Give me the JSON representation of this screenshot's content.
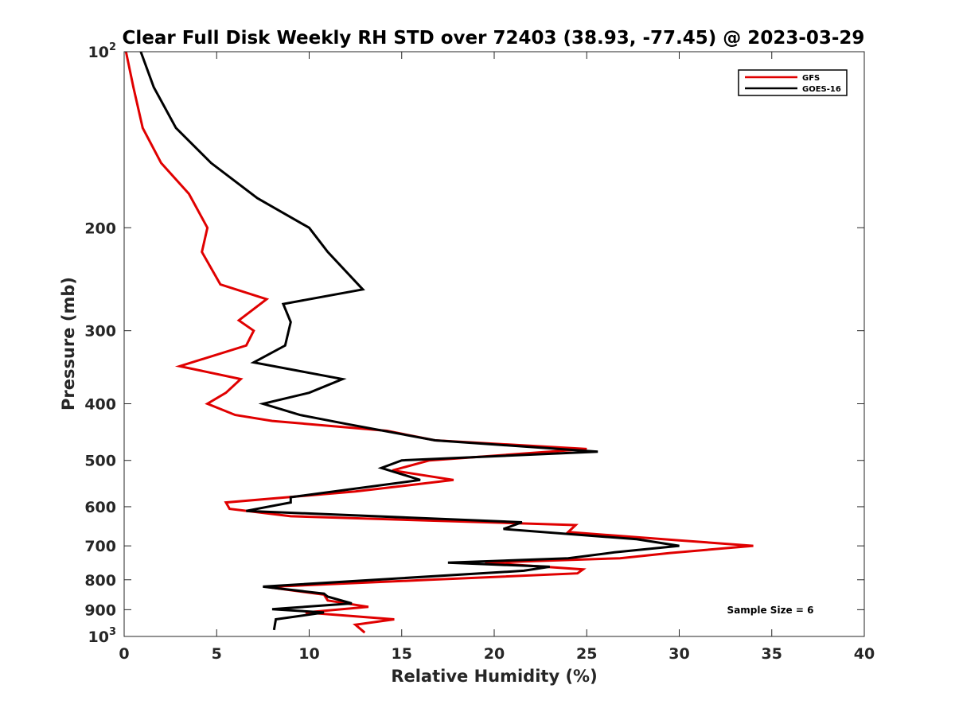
{
  "chart_data": {
    "type": "line",
    "title": "Clear Full Disk Weekly RH STD over 72403 (38.93, -77.45) @ 2023-03-29",
    "xlabel": "Relative Humidity (%)",
    "ylabel": "Pressure (mb)",
    "xlim": [
      0,
      40
    ],
    "ylim": [
      100,
      1000
    ],
    "y_scale": "log",
    "y_reversed": true,
    "x_ticks": [
      "0",
      "5",
      "10",
      "15",
      "20",
      "25",
      "30",
      "35",
      "40"
    ],
    "y_ticks": [
      {
        "value": 100,
        "base": "10",
        "exp": "2"
      },
      {
        "value": 200,
        "label": "200"
      },
      {
        "value": 300,
        "label": "300"
      },
      {
        "value": 400,
        "label": "400"
      },
      {
        "value": 500,
        "label": "500"
      },
      {
        "value": 600,
        "label": "600"
      },
      {
        "value": 700,
        "label": "700"
      },
      {
        "value": 800,
        "label": "800"
      },
      {
        "value": 900,
        "label": "900"
      },
      {
        "value": 1000,
        "base": "10",
        "exp": "3"
      }
    ],
    "grid": false,
    "legend_position": "top-right",
    "annotation": "Sample Size = 6",
    "series": [
      {
        "name": "GFS",
        "color": "#e00000",
        "points": [
          [
            0.1,
            100
          ],
          [
            0.5,
            115
          ],
          [
            1.0,
            135
          ],
          [
            2.0,
            155
          ],
          [
            3.5,
            175
          ],
          [
            4.5,
            200
          ],
          [
            4.2,
            220
          ],
          [
            5.2,
            250
          ],
          [
            7.7,
            265
          ],
          [
            6.2,
            288
          ],
          [
            7.0,
            300
          ],
          [
            6.6,
            318
          ],
          [
            3.0,
            345
          ],
          [
            6.3,
            363
          ],
          [
            5.5,
            383
          ],
          [
            4.5,
            400
          ],
          [
            6.0,
            418
          ],
          [
            8.0,
            428
          ],
          [
            14.2,
            445
          ],
          [
            16.8,
            462
          ],
          [
            25.0,
            478
          ],
          [
            16.5,
            500
          ],
          [
            14.5,
            520
          ],
          [
            17.8,
            540
          ],
          [
            12.5,
            565
          ],
          [
            5.5,
            590
          ],
          [
            5.7,
            605
          ],
          [
            9.0,
            623
          ],
          [
            24.4,
            645
          ],
          [
            24.0,
            663
          ],
          [
            30.0,
            685
          ],
          [
            34.0,
            700
          ],
          [
            29.5,
            720
          ],
          [
            26.8,
            735
          ],
          [
            19.5,
            748
          ],
          [
            24.8,
            768
          ],
          [
            24.5,
            780
          ],
          [
            16.5,
            800
          ],
          [
            7.7,
            823
          ],
          [
            10.8,
            848
          ],
          [
            11.0,
            868
          ],
          [
            13.2,
            890
          ],
          [
            9.8,
            910
          ],
          [
            14.6,
            935
          ],
          [
            12.5,
            955
          ],
          [
            13.0,
            985
          ]
        ]
      },
      {
        "name": "GOES-16",
        "color": "#000000",
        "points": [
          [
            0.9,
            100
          ],
          [
            1.6,
            115
          ],
          [
            2.8,
            135
          ],
          [
            4.7,
            155
          ],
          [
            7.2,
            178
          ],
          [
            10.0,
            200
          ],
          [
            11.0,
            220
          ],
          [
            12.9,
            255
          ],
          [
            8.6,
            270
          ],
          [
            9.0,
            290
          ],
          [
            8.7,
            318
          ],
          [
            7.0,
            340
          ],
          [
            11.8,
            363
          ],
          [
            10.0,
            383
          ],
          [
            7.5,
            400
          ],
          [
            9.5,
            418
          ],
          [
            12.0,
            433
          ],
          [
            16.8,
            462
          ],
          [
            25.6,
            483
          ],
          [
            15.0,
            500
          ],
          [
            13.9,
            515
          ],
          [
            16.0,
            540
          ],
          [
            9.0,
            578
          ],
          [
            9.0,
            590
          ],
          [
            6.6,
            610
          ],
          [
            21.5,
            638
          ],
          [
            20.5,
            655
          ],
          [
            27.7,
            682
          ],
          [
            30.0,
            700
          ],
          [
            26.5,
            718
          ],
          [
            24.0,
            735
          ],
          [
            17.5,
            748
          ],
          [
            23.0,
            760
          ],
          [
            21.6,
            772
          ],
          [
            7.5,
            822
          ],
          [
            10.8,
            845
          ],
          [
            11.0,
            855
          ],
          [
            12.3,
            878
          ],
          [
            8.0,
            898
          ],
          [
            10.8,
            910
          ],
          [
            8.2,
            935
          ],
          [
            8.1,
            975
          ]
        ]
      }
    ]
  }
}
